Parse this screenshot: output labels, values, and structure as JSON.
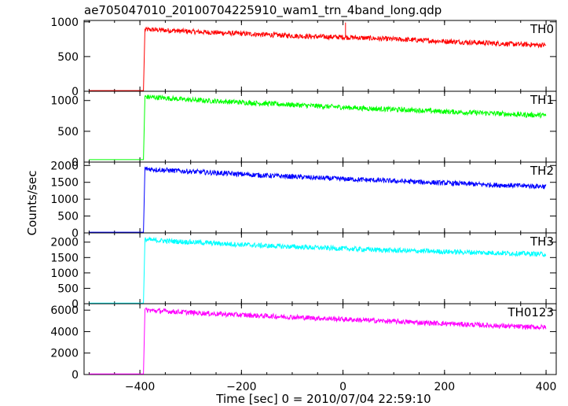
{
  "title": "ae705047010_20100704225910_wam1_trn_4band_long.qdp",
  "chart_data": [
    {
      "type": "line",
      "panel": "TH0",
      "label": "TH0",
      "color": "#ff0000",
      "ylim": [
        0,
        1020
      ],
      "yticks": [
        0,
        500,
        1000
      ],
      "pre_level": 10,
      "onset_x": -393,
      "x": [
        -390,
        -350,
        -300,
        -250,
        -200,
        -150,
        -100,
        -50,
        0,
        50,
        100,
        150,
        200,
        250,
        300,
        350,
        400
      ],
      "y": [
        890,
        880,
        860,
        845,
        830,
        815,
        800,
        785,
        780,
        765,
        750,
        735,
        720,
        705,
        690,
        675,
        665
      ],
      "annotations": [
        {
          "x": 5,
          "y": 990
        }
      ]
    },
    {
      "type": "line",
      "panel": "TH1",
      "label": "TH1",
      "color": "#00ff00",
      "ylim": [
        0,
        1150
      ],
      "yticks": [
        0,
        500,
        1000
      ],
      "pre_level": 40,
      "onset_x": -393,
      "x": [
        -390,
        -350,
        -300,
        -250,
        -200,
        -150,
        -100,
        -50,
        0,
        50,
        100,
        150,
        200,
        250,
        300,
        350,
        400
      ],
      "y": [
        1060,
        1040,
        1010,
        990,
        970,
        950,
        930,
        910,
        890,
        870,
        855,
        840,
        820,
        805,
        790,
        770,
        760
      ]
    },
    {
      "type": "line",
      "panel": "TH2",
      "label": "TH2",
      "color": "#0000ff",
      "ylim": [
        0,
        2100
      ],
      "yticks": [
        0,
        500,
        1000,
        1500,
        2000
      ],
      "pre_level": 20,
      "onset_x": -393,
      "x": [
        -390,
        -350,
        -300,
        -250,
        -200,
        -150,
        -100,
        -50,
        0,
        50,
        100,
        150,
        200,
        250,
        300,
        350,
        400
      ],
      "y": [
        1900,
        1860,
        1820,
        1780,
        1740,
        1700,
        1670,
        1630,
        1600,
        1570,
        1540,
        1510,
        1480,
        1450,
        1420,
        1400,
        1380
      ]
    },
    {
      "type": "line",
      "panel": "TH3",
      "label": "TH3",
      "color": "#00ffff",
      "ylim": [
        0,
        2300
      ],
      "yticks": [
        0,
        500,
        1000,
        1500,
        2000
      ],
      "pre_level": 20,
      "onset_x": -393,
      "x": [
        -390,
        -350,
        -300,
        -250,
        -200,
        -150,
        -100,
        -50,
        0,
        50,
        100,
        150,
        200,
        250,
        300,
        350,
        400
      ],
      "y": [
        2080,
        2040,
        2000,
        1960,
        1920,
        1880,
        1850,
        1820,
        1790,
        1760,
        1730,
        1710,
        1690,
        1670,
        1650,
        1630,
        1610
      ]
    },
    {
      "type": "line",
      "panel": "TH0123",
      "label": "TH0123",
      "color": "#ff00ff",
      "ylim": [
        0,
        6600
      ],
      "yticks": [
        0,
        2000,
        4000,
        6000
      ],
      "pre_level": 60,
      "onset_x": -393,
      "x": [
        -390,
        -350,
        -300,
        -250,
        -200,
        -150,
        -100,
        -50,
        0,
        50,
        100,
        150,
        200,
        250,
        300,
        350,
        400
      ],
      "y": [
        6000,
        5900,
        5780,
        5650,
        5550,
        5450,
        5350,
        5250,
        5150,
        5050,
        4950,
        4850,
        4750,
        4650,
        4550,
        4450,
        4400
      ]
    }
  ],
  "axes": {
    "xlim": [
      -510,
      420
    ],
    "xticks": [
      -400,
      -200,
      0,
      200,
      400
    ],
    "xtick_labels": [
      "−400",
      "−200",
      "0",
      "200",
      "400"
    ],
    "xlabel": "Time [sec] 0 = 2010/07/04 22:59:10",
    "ylabel": "Counts/sec"
  }
}
